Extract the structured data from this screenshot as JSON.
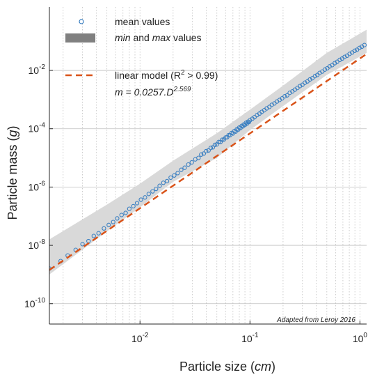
{
  "chart_data": {
    "type": "scatter",
    "x_scale": "log",
    "y_scale": "log",
    "xlim": [
      0.0015,
      1.15
    ],
    "ylim": [
      2e-11,
      1.5
    ],
    "grid": true,
    "x_ticks": [
      {
        "value": 0.01,
        "base": "10",
        "exp": "-2"
      },
      {
        "value": 0.1,
        "base": "10",
        "exp": "-1"
      },
      {
        "value": 1,
        "base": "10",
        "exp": "0"
      }
    ],
    "y_ticks": [
      {
        "value": 1e-10,
        "base": "10",
        "exp": "-10"
      },
      {
        "value": 1e-08,
        "base": "10",
        "exp": "-8"
      },
      {
        "value": 1e-06,
        "base": "10",
        "exp": "-6"
      },
      {
        "value": 0.0001,
        "base": "10",
        "exp": "-4"
      },
      {
        "value": 0.01,
        "base": "10",
        "exp": "-2"
      }
    ],
    "xlabel": {
      "main": "Particle size (",
      "unit": "cm",
      "close": ")"
    },
    "ylabel": {
      "main": "Particle mass (",
      "unit": "g",
      "close": ")"
    },
    "legend": {
      "placement": "top-left",
      "mean": "mean values",
      "minmax_min": "min",
      "minmax_and": " and ",
      "minmax_max": "max",
      "minmax_end": " values",
      "model_pre": "linear model (R",
      "model_sup": "2",
      "model_post": " > 0.99)",
      "eq_main": "m = 0.0257.D",
      "eq_sup": "2.569"
    },
    "annotation": "Adapted from Leroy 2016",
    "model": {
      "a": 0.0257,
      "b": 2.569
    },
    "band": {
      "x": [
        0.0015,
        0.005,
        0.01,
        0.02,
        0.05,
        0.1,
        0.2,
        0.5,
        1.15
      ],
      "lower": [
        1e-09,
        3e-08,
        2e-07,
        1.5e-06,
        1e-05,
        9e-05,
        0.0006,
        0.007,
        0.04
      ],
      "upper": [
        1.6e-08,
        2.5e-07,
        1.3e-06,
        8e-06,
        7e-05,
        0.00045,
        0.003,
        0.04,
        0.25
      ]
    },
    "series": [
      {
        "type": "scatter",
        "x": [
          0.0015,
          0.0019,
          0.0022,
          0.0026,
          0.003,
          0.0034,
          0.0038,
          0.0042,
          0.0047,
          0.0052,
          0.0057,
          0.0062,
          0.0068,
          0.0074,
          0.008,
          0.0087,
          0.0094,
          0.0102,
          0.0111,
          0.012,
          0.013,
          0.014,
          0.0151,
          0.0163,
          0.0176,
          0.019,
          0.0205,
          0.022,
          0.0237,
          0.0255,
          0.0275,
          0.0296,
          0.0318,
          0.034,
          0.036,
          0.038,
          0.04,
          0.042,
          0.044,
          0.046,
          0.048,
          0.05,
          0.052,
          0.054,
          0.056,
          0.058,
          0.06,
          0.062,
          0.064,
          0.066,
          0.068,
          0.07,
          0.072,
          0.074,
          0.076,
          0.078,
          0.08,
          0.082,
          0.084,
          0.086,
          0.088,
          0.09,
          0.092,
          0.094,
          0.096,
          0.098,
          0.1,
          0.105,
          0.11,
          0.116,
          0.122,
          0.128,
          0.135,
          0.142,
          0.15,
          0.158,
          0.167,
          0.176,
          0.186,
          0.196,
          0.207,
          0.218,
          0.23,
          0.243,
          0.256,
          0.27,
          0.285,
          0.3,
          0.316,
          0.333,
          0.351,
          0.37,
          0.39,
          0.41,
          0.43,
          0.455,
          0.48,
          0.505,
          0.53,
          0.56,
          0.59,
          0.62,
          0.655,
          0.69,
          0.725,
          0.765,
          0.805,
          0.85,
          0.895,
          0.94,
          0.99,
          1.04,
          1.1
        ],
        "y": [
          1.6e-09,
          2.9e-09,
          4.5e-09,
          7e-09,
          1.1e-08,
          1.4e-08,
          2.1e-08,
          2.6e-08,
          3.8e-08,
          5e-08,
          6.3e-08,
          8.4e-08,
          1.1e-07,
          1.3e-07,
          1.8e-07,
          2.2e-07,
          2.8e-07,
          3.7e-07,
          4.4e-07,
          5.8e-07,
          7.1e-07,
          8.6e-07,
          1.1e-06,
          1.4e-06,
          1.6e-06,
          2.1e-06,
          2.5e-06,
          3e-06,
          3.9e-06,
          4.6e-06,
          5.9e-06,
          7e-06,
          8.9e-06,
          1e-05,
          1.3e-05,
          1.4e-05,
          1.7e-05,
          1.8e-05,
          2.2e-05,
          2.3e-05,
          2.8e-05,
          2.9e-05,
          3.5e-05,
          3.5e-05,
          4.2e-05,
          4.3e-05,
          5e-05,
          5.1e-05,
          6e-05,
          6e-05,
          7.1e-05,
          6.9e-05,
          8.3e-05,
          8e-05,
          9.6e-05,
          9.2e-05,
          0.00011,
          0.000105,
          0.000125,
          0.00012,
          0.00014,
          0.000135,
          0.00016,
          0.00015,
          0.000175,
          0.00017,
          0.000195,
          0.00022,
          0.00025,
          0.000295,
          0.00033,
          0.00038,
          0.00043,
          0.0005,
          0.00056,
          0.00066,
          0.00074,
          0.00086,
          0.00097,
          0.0011,
          0.0013,
          0.0014,
          0.0017,
          0.0019,
          0.0022,
          0.0025,
          0.0029,
          0.0032,
          0.0038,
          0.0042,
          0.0049,
          0.0054,
          0.0064,
          0.007,
          0.0082,
          0.0092,
          0.0107,
          0.0118,
          0.0137,
          0.0152,
          0.0178,
          0.0197,
          0.023,
          0.0255,
          0.029,
          0.032,
          0.037,
          0.041,
          0.047,
          0.051,
          0.059,
          0.065,
          0.074
        ]
      }
    ]
  },
  "colors": {
    "points": "#3a7fc1",
    "model": "#d95319",
    "band": "#d9d9d9",
    "band_legend": "#808080",
    "grid": "#bfbfbf",
    "axis": "#262626"
  }
}
